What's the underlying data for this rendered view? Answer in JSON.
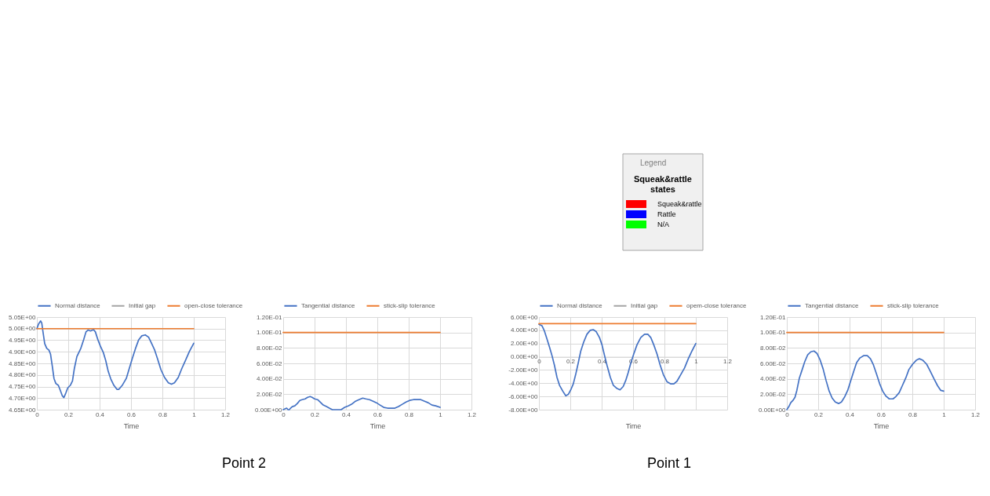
{
  "chart_data": [
    {
      "type": "other",
      "title": "Legend",
      "legend_title": "Squeak&rattle states",
      "categories": [
        "Squeak&rattle",
        "Rattle",
        "N/A"
      ],
      "colors": [
        "#ff0000",
        "#0000ff",
        "#00ff00"
      ]
    },
    {
      "type": "line",
      "xlabel": "Time",
      "annotations": [
        "Point 2"
      ],
      "legend": "top",
      "grid": true,
      "xlim": [
        0,
        1.2
      ],
      "xticks": [
        0,
        0.2,
        0.4,
        0.6,
        0.8,
        1,
        1.2
      ],
      "ylim": [
        4.65,
        5.05
      ],
      "yticks": [
        {
          "value": 4.65,
          "label": "4.65E+00"
        },
        {
          "value": 4.7,
          "label": "4.70E+00"
        },
        {
          "value": 4.75,
          "label": "4.75E+00"
        },
        {
          "value": 4.8,
          "label": "4.80E+00"
        },
        {
          "value": 4.85,
          "label": "4.85E+00"
        },
        {
          "value": 4.9,
          "label": "4.90E+00"
        },
        {
          "value": 4.95,
          "label": "4.95E+00"
        },
        {
          "value": 5.0,
          "label": "5.00E+00"
        },
        {
          "value": 5.05,
          "label": "5.05E+00"
        }
      ],
      "series": [
        {
          "name": "Normal distance",
          "color": "#4472c4",
          "x": [
            0,
            0.011,
            0.024,
            0.031,
            0.039,
            0.05,
            0.063,
            0.077,
            0.087,
            0.098,
            0.109,
            0.121,
            0.137,
            0.15,
            0.162,
            0.172,
            0.184,
            0.197,
            0.213,
            0.227,
            0.239,
            0.255,
            0.279,
            0.298,
            0.313,
            0.326,
            0.342,
            0.361,
            0.373,
            0.389,
            0.405,
            0.424,
            0.439,
            0.455,
            0.471,
            0.491,
            0.51,
            0.523,
            0.546,
            0.57,
            0.589,
            0.609,
            0.628,
            0.649,
            0.669,
            0.691,
            0.712,
            0.732,
            0.751,
            0.77,
            0.791,
            0.814,
            0.838,
            0.858,
            0.877,
            0.901,
            0.924,
            0.948,
            0.972,
            1
          ],
          "values": [
            5.0,
            5.02,
            5.033,
            5.025,
            4.986,
            4.935,
            4.915,
            4.907,
            4.89,
            4.839,
            4.785,
            4.763,
            4.755,
            4.732,
            4.71,
            4.702,
            4.721,
            4.744,
            4.755,
            4.774,
            4.828,
            4.879,
            4.913,
            4.952,
            4.986,
            4.994,
            4.99,
            4.996,
            4.986,
            4.952,
            4.924,
            4.896,
            4.862,
            4.815,
            4.783,
            4.755,
            4.738,
            4.738,
            4.757,
            4.785,
            4.828,
            4.873,
            4.913,
            4.952,
            4.969,
            4.973,
            4.963,
            4.935,
            4.907,
            4.868,
            4.822,
            4.789,
            4.766,
            4.76,
            4.766,
            4.789,
            4.828,
            4.864,
            4.901,
            4.937
          ]
        },
        {
          "name": "Initial gap",
          "color": "#a5a5a5",
          "values": [
            null,
            null
          ]
        },
        {
          "name": "open-close tolerance",
          "color": "#ed7d31",
          "x": [
            0,
            1
          ],
          "values": [
            5.0,
            5.0
          ]
        }
      ]
    },
    {
      "type": "line",
      "xlabel": "Time",
      "legend": "top",
      "grid": true,
      "xlim": [
        0,
        1.2
      ],
      "xticks": [
        0,
        0.2,
        0.4,
        0.6,
        0.8,
        1,
        1.2
      ],
      "ylim": [
        0,
        0.12
      ],
      "yticks": [
        {
          "value": 0,
          "label": "0.00E+00"
        },
        {
          "value": 0.02,
          "label": "2.00E-02"
        },
        {
          "value": 0.04,
          "label": "4.00E-02"
        },
        {
          "value": 0.06,
          "label": "6.00E-02"
        },
        {
          "value": 0.08,
          "label": "8.00E-02"
        },
        {
          "value": 0.1,
          "label": "1.00E-01"
        },
        {
          "value": 0.12,
          "label": "1.20E-01"
        }
      ],
      "series": [
        {
          "name": "Tangential distance",
          "color": "#4472c4",
          "x": [
            0,
            0.011,
            0.022,
            0.031,
            0.039,
            0.047,
            0.058,
            0.074,
            0.09,
            0.106,
            0.121,
            0.14,
            0.156,
            0.172,
            0.184,
            0.2,
            0.219,
            0.235,
            0.255,
            0.276,
            0.294,
            0.313,
            0.342,
            0.369,
            0.392,
            0.417,
            0.436,
            0.461,
            0.483,
            0.507,
            0.526,
            0.55,
            0.573,
            0.594,
            0.617,
            0.641,
            0.665,
            0.688,
            0.712,
            0.735,
            0.759,
            0.783,
            0.806,
            0.83,
            0.854,
            0.877,
            0.901,
            0.924,
            0.948,
            0.972,
            1
          ],
          "values": [
            0,
            0.001,
            0.002,
            0,
            0,
            0.002,
            0.004,
            0.005,
            0.008,
            0.012,
            0.013,
            0.014,
            0.016,
            0.017,
            0.016,
            0.014,
            0.013,
            0.01,
            0.006,
            0.004,
            0.002,
            0,
            0,
            0,
            0.003,
            0.005,
            0.007,
            0.011,
            0.013,
            0.015,
            0.014,
            0.013,
            0.011,
            0.009,
            0.006,
            0.003,
            0.002,
            0.002,
            0.002,
            0.004,
            0.007,
            0.01,
            0.012,
            0.013,
            0.013,
            0.013,
            0.011,
            0.009,
            0.006,
            0.005,
            0.003
          ]
        },
        {
          "name": "stick-slip tolerance",
          "color": "#ed7d31",
          "x": [
            0,
            1
          ],
          "values": [
            0.1,
            0.1
          ]
        }
      ]
    },
    {
      "type": "line",
      "xlabel": "Time",
      "annotations": [
        "Point 1"
      ],
      "legend": "top",
      "grid": true,
      "xlim": [
        0,
        1.2
      ],
      "xticks": [
        0,
        0.2,
        0.4,
        0.6,
        0.8,
        1,
        1.2
      ],
      "ylim": [
        -8,
        6
      ],
      "yticks": [
        {
          "value": -8,
          "label": "-8.00E+00"
        },
        {
          "value": -6,
          "label": "-6.00E+00"
        },
        {
          "value": -4,
          "label": "-4.00E+00"
        },
        {
          "value": -2,
          "label": "-2.00E+00"
        },
        {
          "value": 0,
          "label": "0.00E+00"
        },
        {
          "value": 2,
          "label": "2.00E+00"
        },
        {
          "value": 4,
          "label": "4.00E+00"
        },
        {
          "value": 6,
          "label": "6.00E+00"
        }
      ],
      "series": [
        {
          "name": "Normal distance",
          "color": "#4472c4",
          "x": [
            0,
            0.019,
            0.035,
            0.051,
            0.067,
            0.083,
            0.099,
            0.115,
            0.131,
            0.152,
            0.171,
            0.187,
            0.203,
            0.219,
            0.234,
            0.25,
            0.266,
            0.285,
            0.306,
            0.327,
            0.346,
            0.365,
            0.386,
            0.402,
            0.418,
            0.434,
            0.455,
            0.474,
            0.498,
            0.517,
            0.537,
            0.553,
            0.569,
            0.585,
            0.604,
            0.625,
            0.649,
            0.673,
            0.694,
            0.713,
            0.732,
            0.753,
            0.772,
            0.793,
            0.817,
            0.841,
            0.86,
            0.88,
            0.904,
            0.928,
            0.952,
            0.976,
            1
          ],
          "values": [
            4.9,
            4.7,
            3.9,
            2.7,
            1.5,
            0.2,
            -1.3,
            -3.1,
            -4.3,
            -5.2,
            -5.9,
            -5.7,
            -5.0,
            -4.1,
            -2.7,
            -1.0,
            0.8,
            2.2,
            3.4,
            4.0,
            4.1,
            3.8,
            2.9,
            1.8,
            0.2,
            -1.3,
            -3.1,
            -4.3,
            -4.8,
            -5.0,
            -4.5,
            -3.6,
            -2.4,
            -1.0,
            0.4,
            1.8,
            2.9,
            3.4,
            3.4,
            2.9,
            1.8,
            0.4,
            -1.2,
            -2.7,
            -3.8,
            -4.1,
            -4.1,
            -3.7,
            -2.7,
            -1.7,
            -0.3,
            0.9,
            2.0
          ]
        },
        {
          "name": "Initial gap",
          "color": "#a5a5a5",
          "values": [
            null,
            null
          ]
        },
        {
          "name": "opem-close tolerance",
          "color": "#ed7d31",
          "x": [
            0,
            1
          ],
          "values": [
            5,
            5
          ]
        }
      ]
    },
    {
      "type": "line",
      "xlabel": "Time",
      "legend": "top",
      "grid": true,
      "xlim": [
        0,
        1.2
      ],
      "xticks": [
        0,
        0.2,
        0.4,
        0.6,
        0.8,
        1,
        1.2
      ],
      "ylim": [
        0,
        0.12
      ],
      "yticks": [
        {
          "value": 0,
          "label": "0.00E+00"
        },
        {
          "value": 0.02,
          "label": "2.00E-02"
        },
        {
          "value": 0.04,
          "label": "4.00E-02"
        },
        {
          "value": 0.06,
          "label": "6.00E-02"
        },
        {
          "value": 0.08,
          "label": "8.00E-02"
        },
        {
          "value": 0.1,
          "label": "1.00E-01"
        },
        {
          "value": 0.12,
          "label": "1.20E-01"
        }
      ],
      "series": [
        {
          "name": "Tangential distance",
          "color": "#4472c4",
          "x": [
            0,
            0.013,
            0.025,
            0.039,
            0.052,
            0.064,
            0.08,
            0.098,
            0.114,
            0.133,
            0.153,
            0.173,
            0.192,
            0.211,
            0.231,
            0.25,
            0.27,
            0.289,
            0.309,
            0.33,
            0.348,
            0.367,
            0.388,
            0.408,
            0.427,
            0.445,
            0.466,
            0.489,
            0.513,
            0.533,
            0.552,
            0.572,
            0.591,
            0.611,
            0.63,
            0.653,
            0.677,
            0.695,
            0.716,
            0.736,
            0.758,
            0.778,
            0.802,
            0.825,
            0.845,
            0.867,
            0.891,
            0.914,
            0.938,
            0.961,
            0.981,
            1
          ],
          "values": [
            0,
            0.004,
            0.009,
            0.012,
            0.016,
            0.025,
            0.041,
            0.052,
            0.062,
            0.071,
            0.075,
            0.076,
            0.073,
            0.065,
            0.053,
            0.038,
            0.024,
            0.015,
            0.01,
            0.008,
            0.01,
            0.016,
            0.025,
            0.038,
            0.05,
            0.061,
            0.067,
            0.07,
            0.07,
            0.066,
            0.058,
            0.046,
            0.034,
            0.024,
            0.018,
            0.014,
            0.014,
            0.017,
            0.022,
            0.031,
            0.041,
            0.052,
            0.059,
            0.064,
            0.066,
            0.064,
            0.059,
            0.05,
            0.04,
            0.031,
            0.025,
            0.024
          ]
        },
        {
          "name": "stick-slip tolerance",
          "color": "#ed7d31",
          "x": [
            0,
            1
          ],
          "values": [
            0.1,
            0.1
          ]
        }
      ]
    }
  ]
}
